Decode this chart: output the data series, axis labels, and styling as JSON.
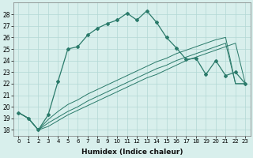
{
  "xlabel": "Humidex (Indice chaleur)",
  "x": [
    0,
    1,
    2,
    3,
    4,
    5,
    6,
    7,
    8,
    9,
    10,
    11,
    12,
    13,
    14,
    15,
    16,
    17,
    18,
    19,
    20,
    21,
    22,
    23
  ],
  "line1": [
    19.5,
    19.0,
    18.0,
    19.3,
    22.2,
    25.0,
    25.2,
    26.2,
    26.8,
    27.2,
    27.5,
    28.1,
    27.5,
    28.3,
    27.3,
    26.0,
    25.1,
    24.1,
    24.2,
    22.8,
    24.0,
    22.7,
    23.0,
    22.0
  ],
  "line2": [
    19.5,
    19.0,
    18.0,
    18.3,
    18.8,
    19.3,
    19.7,
    20.1,
    20.5,
    20.9,
    21.3,
    21.7,
    22.1,
    22.5,
    22.8,
    23.2,
    23.6,
    24.0,
    24.3,
    24.6,
    24.9,
    25.2,
    25.5,
    22.0
  ],
  "line3": [
    19.5,
    19.0,
    18.0,
    18.6,
    19.1,
    19.6,
    20.0,
    20.5,
    20.9,
    21.3,
    21.7,
    22.1,
    22.5,
    22.9,
    23.3,
    23.6,
    24.0,
    24.3,
    24.6,
    24.9,
    25.2,
    25.5,
    22.0,
    22.0
  ],
  "line4": [
    19.5,
    19.0,
    18.0,
    18.9,
    19.6,
    20.2,
    20.6,
    21.1,
    21.5,
    21.9,
    22.3,
    22.7,
    23.1,
    23.5,
    23.9,
    24.2,
    24.6,
    24.9,
    25.2,
    25.5,
    25.8,
    26.0,
    22.0,
    22.0
  ],
  "ylim": [
    17.5,
    29.0
  ],
  "yticks": [
    18,
    19,
    20,
    21,
    22,
    23,
    24,
    25,
    26,
    27,
    28
  ],
  "color": "#2a7a6a",
  "bg_color": "#d8efec",
  "grid_color": "#b2d8d4"
}
